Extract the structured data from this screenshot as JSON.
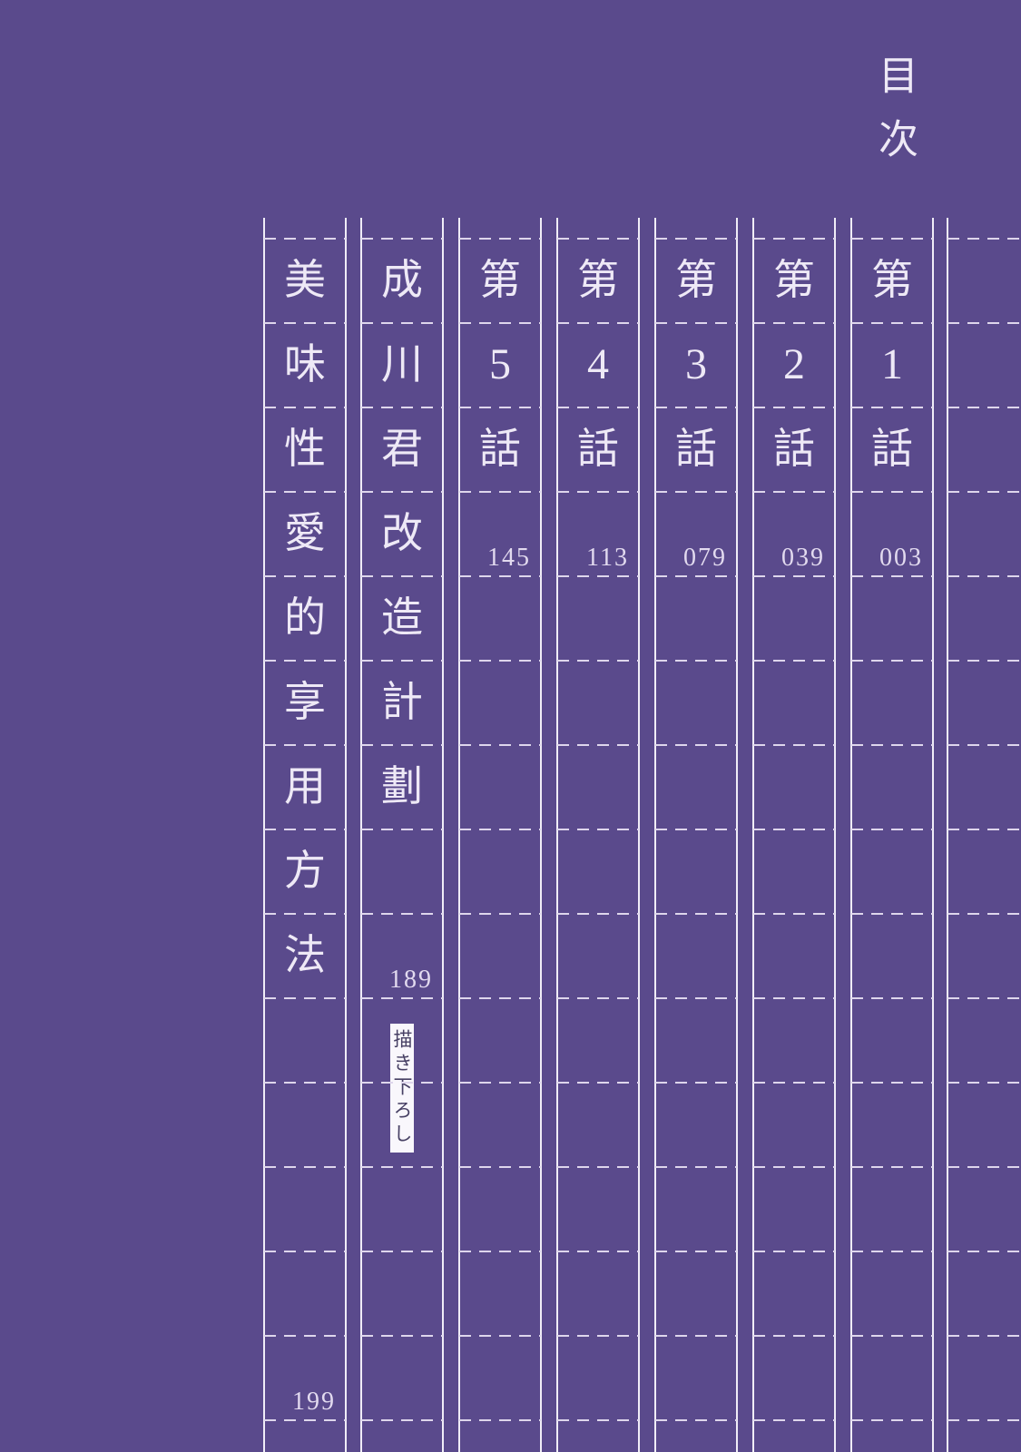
{
  "page": {
    "title": "目次",
    "colors": {
      "background": "#5a4a8c",
      "ink": "#eee9f6",
      "grid_line": "#f0edf7",
      "dashed_line": "#ded6ec",
      "badge_background": "#f9f7fc",
      "badge_text": "#474064"
    }
  },
  "toc": {
    "columns": [
      {
        "title": "美味性愛的享用方法",
        "chars": [
          "美",
          "味",
          "性",
          "愛",
          "的",
          "享",
          "用",
          "方",
          "法"
        ],
        "page": "199"
      },
      {
        "title": "成川君改造計劃",
        "chars": [
          "成",
          "川",
          "君",
          "改",
          "造",
          "計",
          "劃"
        ],
        "page": "189",
        "badge": "描き下ろし"
      },
      {
        "title": "第5話",
        "chars": [
          "第",
          "5",
          "話"
        ],
        "page": "145"
      },
      {
        "title": "第4話",
        "chars": [
          "第",
          "4",
          "話"
        ],
        "page": "113"
      },
      {
        "title": "第3話",
        "chars": [
          "第",
          "3",
          "話"
        ],
        "page": "079"
      },
      {
        "title": "第2話",
        "chars": [
          "第",
          "2",
          "話"
        ],
        "page": "039"
      },
      {
        "title": "第1話",
        "chars": [
          "第",
          "1",
          "話"
        ],
        "page": "003"
      },
      {
        "title": "",
        "chars": [],
        "page": ""
      }
    ]
  }
}
